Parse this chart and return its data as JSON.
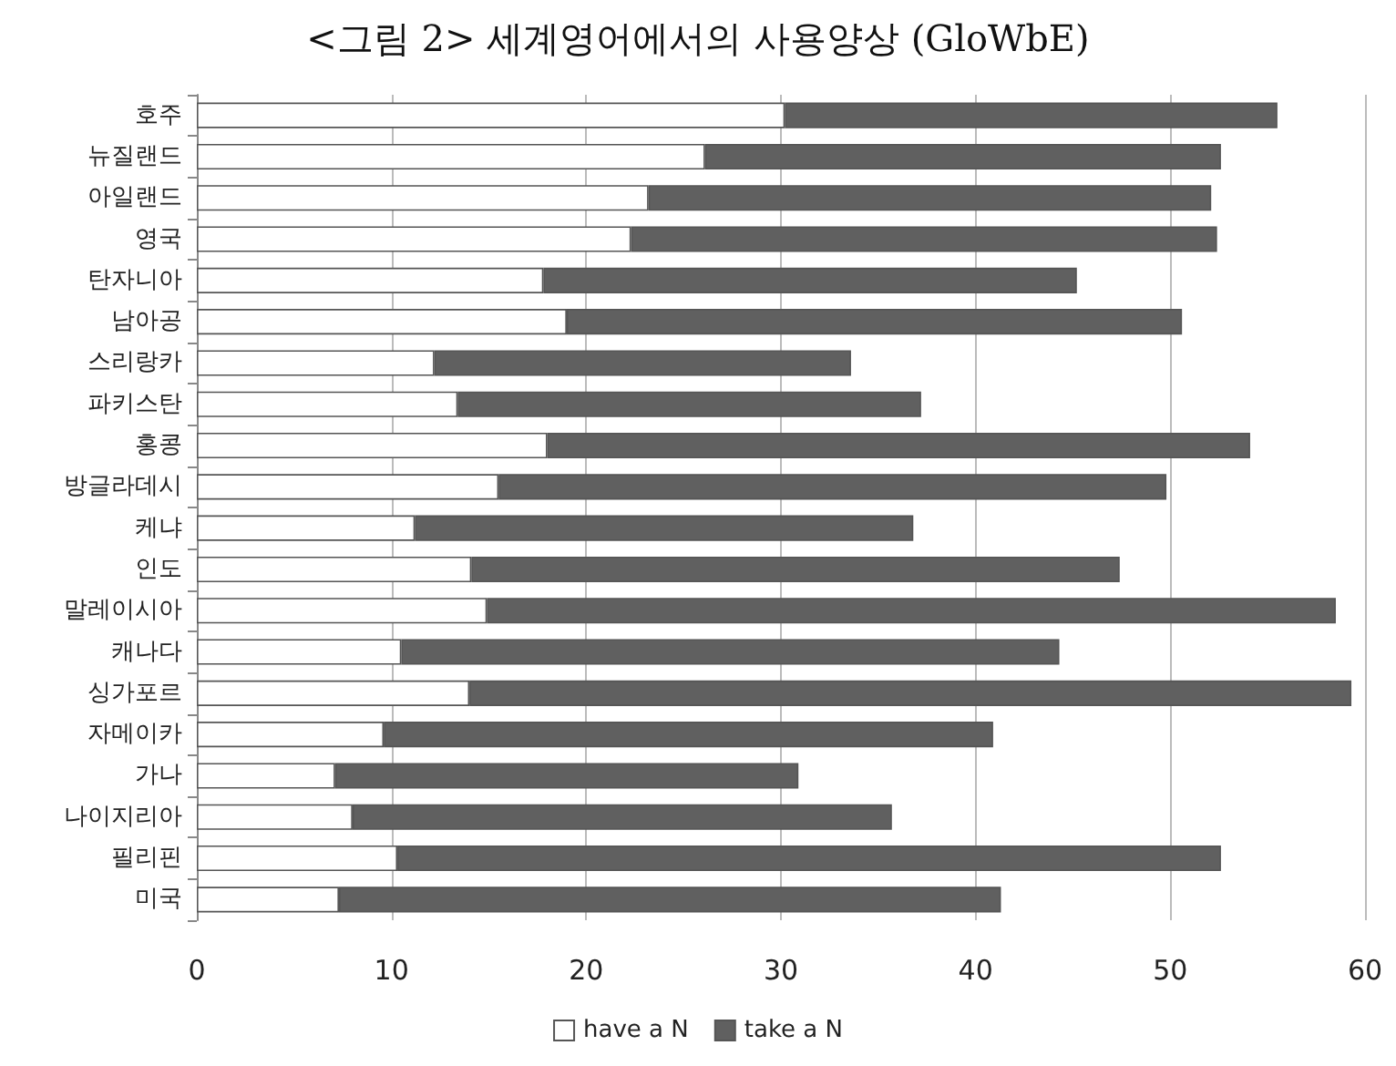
{
  "chart_data": {
    "type": "bar",
    "orientation": "horizontal",
    "stacked": true,
    "title": "<그림 2> 세계영어에서의 사용양상 (GloWbE)",
    "categories": [
      "호주",
      "뉴질랜드",
      "아일랜드",
      "영국",
      "탄자니아",
      "남아공",
      "스리랑카",
      "파키스탄",
      "홍콩",
      "방글라데시",
      "케냐",
      "인도",
      "말레이시아",
      "캐나다",
      "싱가포르",
      "자메이카",
      "가나",
      "나이지리아",
      "필리핀",
      "미국"
    ],
    "series": [
      {
        "name": "have a N",
        "color": "#ffffff",
        "values": [
          30.2,
          26.1,
          23.2,
          22.3,
          17.8,
          19.0,
          12.2,
          13.4,
          18.0,
          15.5,
          11.2,
          14.1,
          14.9,
          10.5,
          14.0,
          9.6,
          7.1,
          8.0,
          10.3,
          7.3
        ]
      },
      {
        "name": "take a N",
        "color": "#606060",
        "values": [
          25.3,
          26.5,
          28.9,
          30.1,
          27.4,
          31.6,
          21.4,
          23.8,
          36.1,
          34.3,
          25.6,
          33.3,
          43.6,
          33.8,
          45.3,
          31.3,
          23.8,
          27.7,
          42.3,
          34.0
        ]
      }
    ],
    "xlim": [
      0,
      60
    ],
    "xticks": [
      0,
      10,
      20,
      30,
      40,
      50,
      60
    ],
    "grid": "x",
    "legend": "bottom"
  }
}
